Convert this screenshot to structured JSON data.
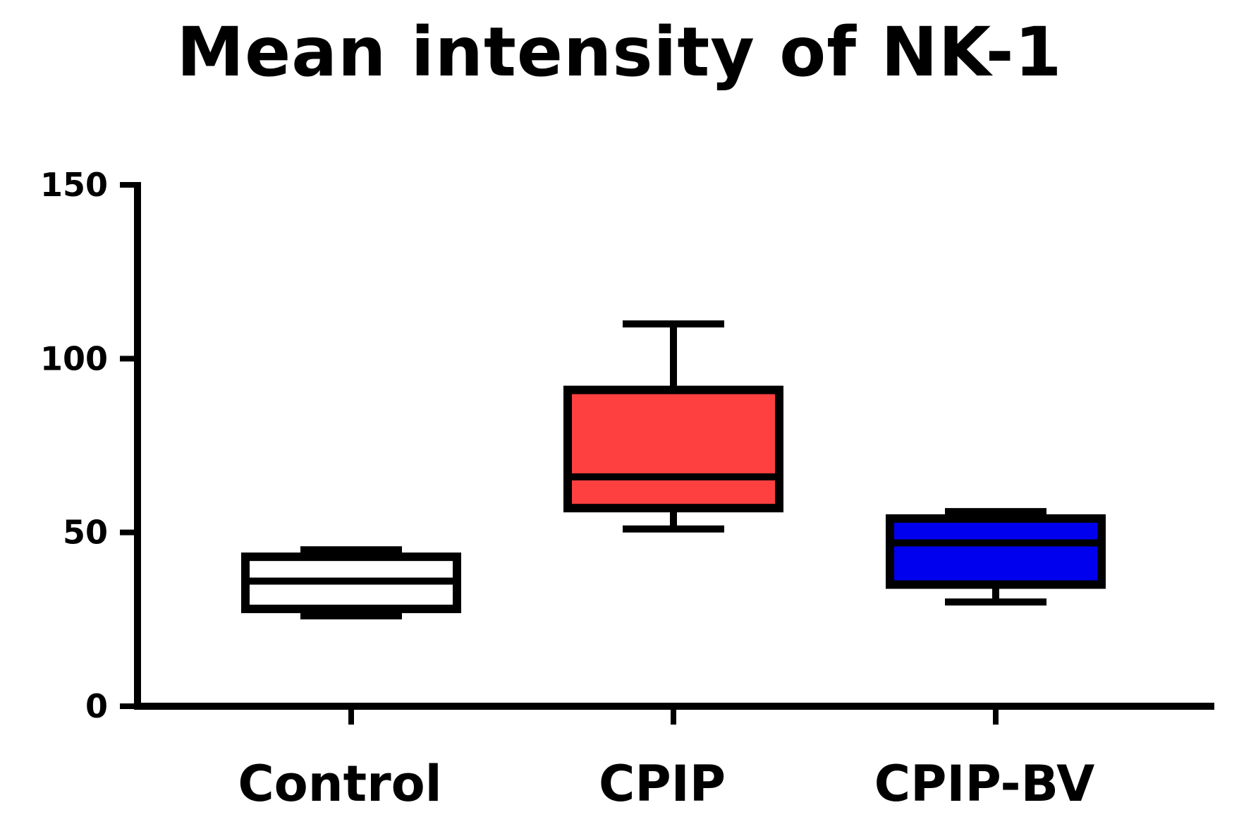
{
  "chart_data": {
    "type": "box",
    "title": "Mean intensity of NK-1",
    "xlabel": "",
    "ylabel": "",
    "ylim": [
      0,
      150
    ],
    "yticks": [
      0,
      50,
      100,
      150
    ],
    "grid": false,
    "categories": [
      "Control",
      "CPIP",
      "CPIP-BV"
    ],
    "boxes": [
      {
        "category": "Control",
        "min": 26,
        "q1": 28,
        "median": 36,
        "q3": 43,
        "max": 45,
        "color": "#ffffff"
      },
      {
        "category": "CPIP",
        "min": 51,
        "q1": 57,
        "median": 66,
        "q3": 91,
        "max": 110,
        "color": "#ff4040"
      },
      {
        "category": "CPIP-BV",
        "min": 30,
        "q1": 35,
        "median": 47,
        "q3": 54,
        "max": 56,
        "color": "#0000ee"
      }
    ]
  }
}
